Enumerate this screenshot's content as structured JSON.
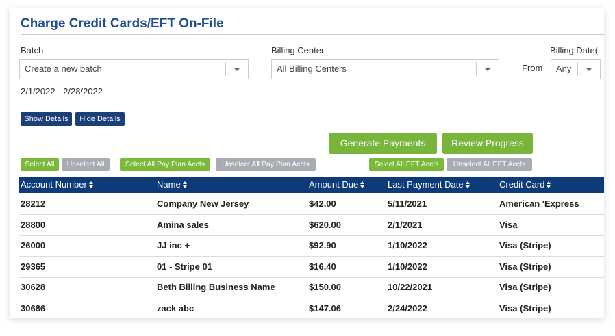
{
  "header": {
    "title": "Charge Credit Cards/EFT On-File"
  },
  "filters": {
    "batch": {
      "label": "Batch",
      "value": "Create a new batch"
    },
    "billing_center": {
      "label": "Billing Center",
      "value": "All Billing Centers"
    },
    "billing_date": {
      "label": "Billing Date(",
      "from_label": "From",
      "value": "Any"
    },
    "date_range": "2/1/2022 - 2/28/2022"
  },
  "buttons": {
    "show_details": "Show Details",
    "hide_details": "Hide Details",
    "generate_payments": "Generate Payments",
    "review_progress": "Review Progress",
    "select_all": "Select All",
    "unselect_all": "Unselect All",
    "select_all_pay_plan": "Select All Pay Plan Accts",
    "unselect_all_pay_plan": "Unselect All Pay Plan Accts",
    "select_all_eft": "Select All EFT Accts",
    "unselect_all_eft": "Unselect All EFT Accts"
  },
  "table": {
    "columns": [
      "Account Number",
      "Name",
      "Amount Due",
      "Last Payment Date",
      "Credit Card"
    ],
    "rows": [
      [
        "28212",
        "Company New Jersey",
        "$42.00",
        "5/11/2021",
        "American 'Express"
      ],
      [
        "28800",
        "Amina sales",
        "$620.00",
        "2/1/2021",
        "Visa"
      ],
      [
        "26000",
        "JJ inc +",
        "$92.90",
        "1/10/2022",
        "Visa (Stripe)"
      ],
      [
        "29365",
        "01 - Stripe 01",
        "$16.40",
        "1/10/2022",
        "Visa (Stripe)"
      ],
      [
        "30628",
        "Beth Billing Business Name",
        "$150.00",
        "10/22/2021",
        "Visa (Stripe)"
      ],
      [
        "30686",
        "zack abc",
        "$147.06",
        "2/24/2022",
        "Visa (Stripe)"
      ]
    ]
  }
}
